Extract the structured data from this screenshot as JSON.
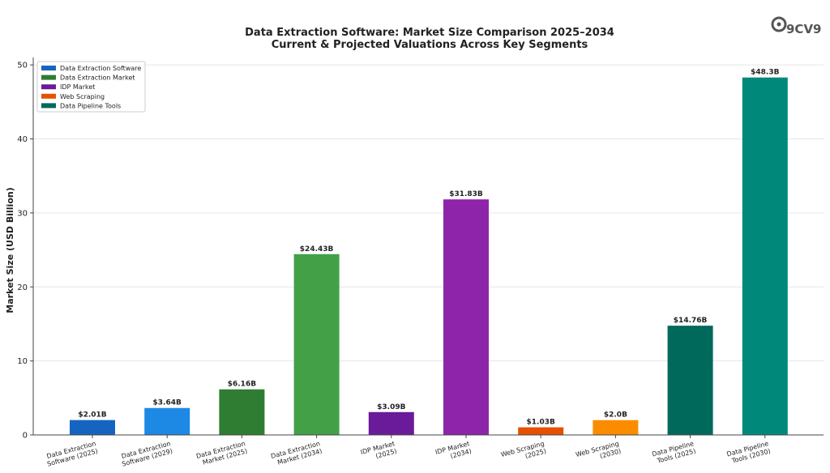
{
  "chart_data": {
    "type": "bar",
    "title": "Data Extraction Software: Market Size Comparison 2025–2034",
    "subtitle": "Current & Projected Valuations Across Key Segments",
    "ylabel": "Market Size (USD Billion)",
    "ylim": [
      0,
      50
    ],
    "yticks": [
      0,
      10,
      20,
      30,
      40,
      50
    ],
    "grid": true,
    "legend_position": "top-left",
    "categories": [
      [
        "Data Extraction",
        "Software (2025)"
      ],
      [
        "Data Extraction",
        "Software (2029)"
      ],
      [
        "Data Extraction",
        "Market (2025)"
      ],
      [
        "Data Extraction",
        "Market (2034)"
      ],
      [
        "IDP Market",
        "(2025)"
      ],
      [
        "IDP Market",
        "(2034)"
      ],
      [
        "Web Scraping",
        "(2025)"
      ],
      [
        "Web Scraping",
        "(2030)"
      ],
      [
        "Data Pipeline",
        "Tools (2025)"
      ],
      [
        "Data Pipeline",
        "Tools (2030)"
      ]
    ],
    "values": [
      2.01,
      3.64,
      6.16,
      24.43,
      3.09,
      31.83,
      1.03,
      2.0,
      14.76,
      48.3
    ],
    "value_labels": [
      "$2.01B",
      "$3.64B",
      "$6.16B",
      "$24.43B",
      "$3.09B",
      "$31.83B",
      "$1.03B",
      "$2.0B",
      "$14.76B",
      "$48.3B"
    ],
    "bar_colors": [
      "#1565c0",
      "#1e88e5",
      "#2e7d32",
      "#43a047",
      "#6a1b9a",
      "#8e24aa",
      "#e65100",
      "#fb8c00",
      "#00695c",
      "#00897b"
    ],
    "legend": [
      {
        "name": "Data Extraction Software",
        "color": "#1565c0"
      },
      {
        "name": "Data Extraction Market",
        "color": "#2e7d32"
      },
      {
        "name": "IDP Market",
        "color": "#6a1b9a"
      },
      {
        "name": "Web Scraping",
        "color": "#e65100"
      },
      {
        "name": "Data Pipeline Tools",
        "color": "#00695c"
      }
    ]
  },
  "logo": {
    "text": "9CV9",
    "color": "#555555"
  }
}
